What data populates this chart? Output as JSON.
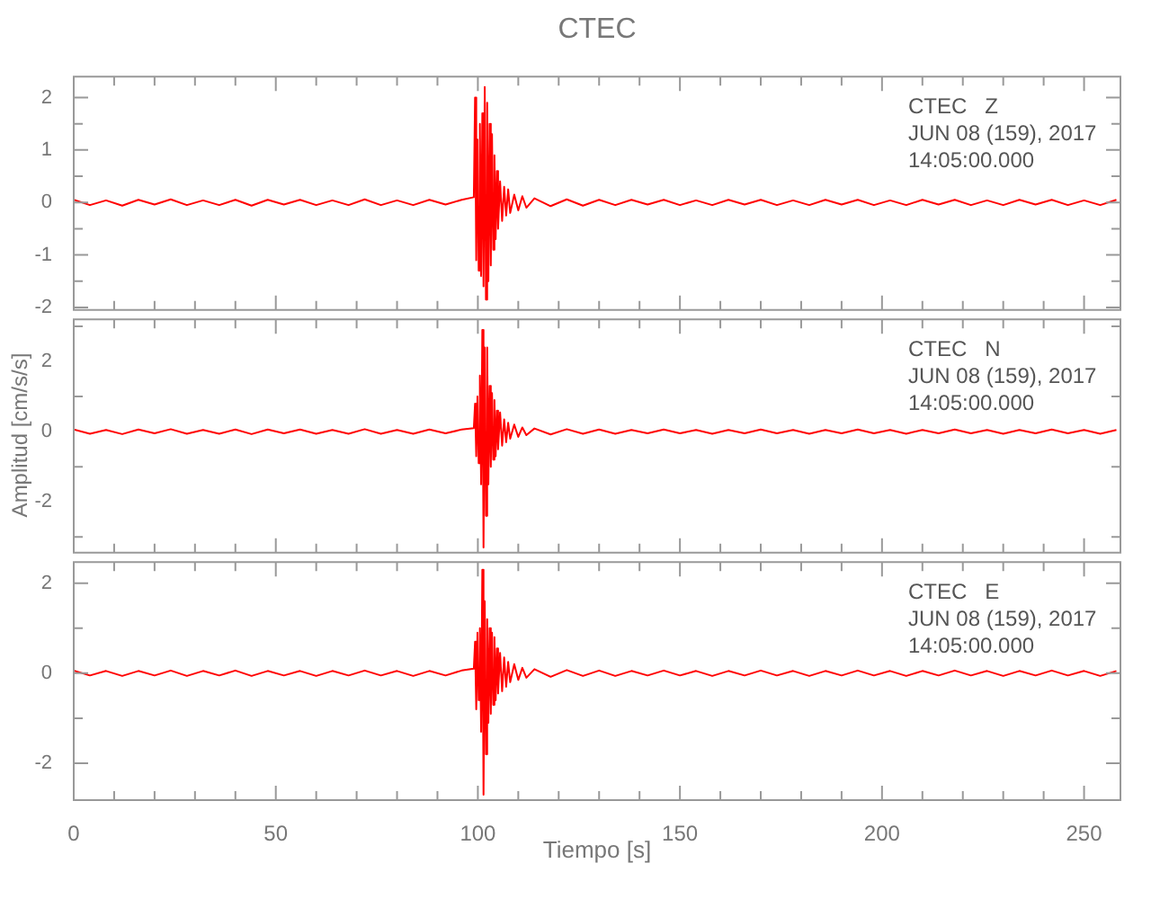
{
  "chart_data": [
    {
      "type": "line",
      "title": "CTEC",
      "annotations": [
        "CTEC   Z",
        "JUN 08 (159), 2017",
        "14:05:00.000"
      ],
      "tick_labels": "y",
      "x": [
        0,
        4,
        8,
        12,
        16,
        20,
        24,
        28,
        32,
        36,
        40,
        44,
        48,
        52,
        56,
        60,
        64,
        68,
        72,
        76,
        80,
        84,
        88,
        92,
        96,
        99.0,
        99.3,
        99.6,
        99.9,
        100.2,
        100.5,
        100.8,
        101.1,
        101.4,
        101.7,
        102.0,
        102.3,
        102.6,
        102.9,
        103.2,
        103.5,
        103.8,
        104.1,
        104.4,
        104.7,
        105.0,
        105.5,
        106,
        106.5,
        107,
        107.5,
        108,
        109,
        110,
        111,
        112,
        114,
        118,
        122,
        126,
        130,
        134,
        138,
        142,
        146,
        150,
        154,
        158,
        162,
        166,
        170,
        174,
        178,
        182,
        186,
        190,
        194,
        198,
        202,
        206,
        210,
        214,
        218,
        222,
        226,
        230,
        234,
        238,
        242,
        246,
        250,
        254,
        258
      ],
      "xlim": [
        0,
        259
      ],
      "ylim": [
        -2.05,
        2.4
      ],
      "xticks": [
        0,
        {
          "value": 10,
          "label": null
        },
        {
          "value": 20,
          "label": null
        },
        {
          "value": 30,
          "label": null
        },
        {
          "value": 40,
          "label": null
        },
        50,
        {
          "value": 60,
          "label": null
        },
        {
          "value": 70,
          "label": null
        },
        {
          "value": 80,
          "label": null
        },
        {
          "value": 90,
          "label": null
        },
        100,
        {
          "value": 110,
          "label": null
        },
        {
          "value": 120,
          "label": null
        },
        {
          "value": 130,
          "label": null
        },
        {
          "value": 140,
          "label": null
        },
        150,
        {
          "value": 160,
          "label": null
        },
        {
          "value": 170,
          "label": null
        },
        {
          "value": 180,
          "label": null
        },
        {
          "value": 190,
          "label": null
        },
        200,
        {
          "value": 210,
          "label": null
        },
        {
          "value": 220,
          "label": null
        },
        {
          "value": 230,
          "label": null
        },
        {
          "value": 240,
          "label": null
        },
        250
      ],
      "yticks": [
        -2,
        {
          "value": -1.5,
          "label": null
        },
        -1,
        {
          "value": -0.5,
          "label": null
        },
        0,
        {
          "value": 0.5,
          "label": null
        },
        1,
        {
          "value": 1.5,
          "label": null
        },
        2
      ],
      "series": [
        {
          "color": "#ff0000",
          "values": [
            0.05,
            -0.05,
            0.04,
            -0.06,
            0.05,
            -0.04,
            0.06,
            -0.05,
            0.04,
            -0.05,
            0.05,
            -0.06,
            0.05,
            -0.04,
            0.05,
            -0.05,
            0.04,
            -0.05,
            0.06,
            -0.05,
            0.04,
            -0.05,
            0.05,
            -0.04,
            0.05,
            0.1,
            2.0,
            -1.1,
            1.2,
            -1.3,
            1.5,
            -1.4,
            1.7,
            -1.6,
            2.2,
            -1.85,
            1.9,
            -1.5,
            1.5,
            -1.2,
            1.3,
            -0.9,
            0.9,
            -0.7,
            0.6,
            -0.5,
            0.4,
            -0.35,
            0.3,
            -0.25,
            0.25,
            -0.2,
            0.15,
            -0.15,
            0.12,
            -0.1,
            0.08,
            -0.07,
            0.06,
            -0.06,
            0.05,
            -0.05,
            0.05,
            -0.04,
            0.05,
            -0.05,
            0.04,
            -0.05,
            0.05,
            -0.04,
            0.05,
            -0.05,
            0.04,
            -0.05,
            0.05,
            -0.04,
            0.05,
            -0.05,
            0.04,
            -0.05,
            0.05,
            -0.04,
            0.05,
            -0.05,
            0.04,
            -0.05,
            0.05,
            -0.04,
            0.05,
            -0.05,
            0.04,
            -0.05,
            0.05
          ]
        }
      ]
    },
    {
      "type": "line",
      "ylabel": "Amplitud [cm/s/s]",
      "annotations": [
        "CTEC   N",
        "JUN 08 (159), 2017",
        "14:05:00.000"
      ],
      "tick_labels": "y",
      "x": [
        0,
        4,
        8,
        12,
        16,
        20,
        24,
        28,
        32,
        36,
        40,
        44,
        48,
        52,
        56,
        60,
        64,
        68,
        72,
        76,
        80,
        84,
        88,
        92,
        96,
        99.0,
        99.3,
        99.6,
        99.9,
        100.2,
        100.5,
        100.8,
        101.1,
        101.4,
        101.7,
        102.0,
        102.3,
        102.6,
        102.9,
        103.2,
        103.5,
        103.8,
        104.1,
        104.4,
        104.7,
        105.0,
        105.5,
        106,
        106.5,
        107,
        107.5,
        108,
        109,
        110,
        111,
        112,
        114,
        118,
        122,
        126,
        130,
        134,
        138,
        142,
        146,
        150,
        154,
        158,
        162,
        166,
        170,
        174,
        178,
        182,
        186,
        190,
        194,
        198,
        202,
        206,
        210,
        214,
        218,
        222,
        226,
        230,
        234,
        238,
        242,
        246,
        250,
        254,
        258
      ],
      "xlim": [
        0,
        259
      ],
      "ylim": [
        -3.45,
        3.2
      ],
      "xticks": [
        0,
        {
          "value": 10,
          "label": null
        },
        {
          "value": 20,
          "label": null
        },
        {
          "value": 30,
          "label": null
        },
        {
          "value": 40,
          "label": null
        },
        50,
        {
          "value": 60,
          "label": null
        },
        {
          "value": 70,
          "label": null
        },
        {
          "value": 80,
          "label": null
        },
        {
          "value": 90,
          "label": null
        },
        100,
        {
          "value": 110,
          "label": null
        },
        {
          "value": 120,
          "label": null
        },
        {
          "value": 130,
          "label": null
        },
        {
          "value": 140,
          "label": null
        },
        150,
        {
          "value": 160,
          "label": null
        },
        {
          "value": 170,
          "label": null
        },
        {
          "value": 180,
          "label": null
        },
        {
          "value": 190,
          "label": null
        },
        200,
        {
          "value": 210,
          "label": null
        },
        {
          "value": 220,
          "label": null
        },
        {
          "value": 230,
          "label": null
        },
        {
          "value": 240,
          "label": null
        },
        250
      ],
      "yticks": [
        {
          "value": -3,
          "label": null
        },
        -2,
        {
          "value": -1,
          "label": null
        },
        0,
        {
          "value": 1,
          "label": null
        },
        2,
        {
          "value": 3,
          "label": null
        }
      ],
      "series": [
        {
          "color": "#ff0000",
          "values": [
            0.06,
            -0.06,
            0.05,
            -0.07,
            0.06,
            -0.05,
            0.07,
            -0.06,
            0.05,
            -0.06,
            0.06,
            -0.07,
            0.06,
            -0.05,
            0.06,
            -0.06,
            0.05,
            -0.06,
            0.07,
            -0.06,
            0.05,
            -0.06,
            0.06,
            -0.05,
            0.06,
            0.1,
            0.8,
            -0.7,
            1.0,
            -0.9,
            1.6,
            -1.5,
            2.9,
            -3.3,
            2.4,
            -2.4,
            2.4,
            -1.5,
            1.3,
            -1.0,
            1.1,
            -0.8,
            0.9,
            -0.7,
            0.6,
            -0.5,
            0.55,
            -0.4,
            0.35,
            -0.3,
            0.25,
            -0.2,
            0.2,
            -0.15,
            0.12,
            -0.1,
            0.09,
            -0.08,
            0.07,
            -0.06,
            0.06,
            -0.06,
            0.05,
            -0.05,
            0.06,
            -0.05,
            0.05,
            -0.06,
            0.05,
            -0.05,
            0.06,
            -0.05,
            0.05,
            -0.06,
            0.05,
            -0.05,
            0.06,
            -0.05,
            0.05,
            -0.06,
            0.05,
            -0.05,
            0.06,
            -0.05,
            0.05,
            -0.06,
            0.05,
            -0.05,
            0.06,
            -0.05,
            0.05,
            -0.06,
            0.05
          ]
        }
      ]
    },
    {
      "type": "line",
      "xlabel": "Tiempo [s]",
      "annotations": [
        "CTEC   E",
        "JUN 08 (159), 2017",
        "14:05:00.000"
      ],
      "x": [
        0,
        4,
        8,
        12,
        16,
        20,
        24,
        28,
        32,
        36,
        40,
        44,
        48,
        52,
        56,
        60,
        64,
        68,
        72,
        76,
        80,
        84,
        88,
        92,
        96,
        99.0,
        99.3,
        99.6,
        99.9,
        100.2,
        100.5,
        100.8,
        101.1,
        101.4,
        101.7,
        102.0,
        102.3,
        102.6,
        102.9,
        103.2,
        103.5,
        103.8,
        104.1,
        104.4,
        104.7,
        105.0,
        105.5,
        106,
        106.5,
        107,
        107.5,
        108,
        109,
        110,
        111,
        112,
        114,
        118,
        122,
        126,
        130,
        134,
        138,
        142,
        146,
        150,
        154,
        158,
        162,
        166,
        170,
        174,
        178,
        182,
        186,
        190,
        194,
        198,
        202,
        206,
        210,
        214,
        218,
        222,
        226,
        230,
        234,
        238,
        242,
        246,
        250,
        254,
        258
      ],
      "xlim": [
        0,
        259
      ],
      "ylim": [
        -2.82,
        2.47
      ],
      "xticks": [
        0,
        {
          "value": 10,
          "label": null
        },
        {
          "value": 20,
          "label": null
        },
        {
          "value": 30,
          "label": null
        },
        {
          "value": 40,
          "label": null
        },
        50,
        {
          "value": 60,
          "label": null
        },
        {
          "value": 70,
          "label": null
        },
        {
          "value": 80,
          "label": null
        },
        {
          "value": 90,
          "label": null
        },
        100,
        {
          "value": 110,
          "label": null
        },
        {
          "value": 120,
          "label": null
        },
        {
          "value": 130,
          "label": null
        },
        {
          "value": 140,
          "label": null
        },
        150,
        {
          "value": 160,
          "label": null
        },
        {
          "value": 170,
          "label": null
        },
        {
          "value": 180,
          "label": null
        },
        {
          "value": 190,
          "label": null
        },
        200,
        {
          "value": 210,
          "label": null
        },
        {
          "value": 220,
          "label": null
        },
        {
          "value": 230,
          "label": null
        },
        {
          "value": 240,
          "label": null
        },
        250
      ],
      "yticks": [
        -2,
        {
          "value": -1,
          "label": null
        },
        0,
        {
          "value": 1,
          "label": null
        },
        2
      ],
      "series": [
        {
          "color": "#ff0000",
          "values": [
            0.06,
            -0.05,
            0.05,
            -0.06,
            0.05,
            -0.05,
            0.06,
            -0.06,
            0.05,
            -0.05,
            0.06,
            -0.06,
            0.05,
            -0.05,
            0.05,
            -0.06,
            0.05,
            -0.05,
            0.06,
            -0.05,
            0.05,
            -0.06,
            0.05,
            -0.05,
            0.06,
            0.1,
            0.7,
            -0.8,
            0.9,
            -0.6,
            1.0,
            -1.3,
            2.3,
            -2.7,
            1.6,
            -1.8,
            1.2,
            -1.1,
            1.0,
            -0.9,
            0.9,
            -0.7,
            0.8,
            -0.6,
            0.55,
            -0.45,
            0.45,
            -0.4,
            0.35,
            -0.3,
            0.25,
            -0.2,
            0.2,
            -0.15,
            0.12,
            -0.1,
            0.09,
            -0.08,
            0.07,
            -0.06,
            0.06,
            -0.06,
            0.05,
            -0.05,
            0.06,
            -0.05,
            0.05,
            -0.06,
            0.05,
            -0.05,
            0.06,
            -0.05,
            0.05,
            -0.06,
            0.05,
            -0.05,
            0.06,
            -0.05,
            0.05,
            -0.06,
            0.05,
            -0.05,
            0.06,
            -0.05,
            0.05,
            -0.06,
            0.05,
            -0.05,
            0.06,
            -0.05,
            0.05,
            -0.06,
            0.05
          ]
        }
      ]
    }
  ]
}
